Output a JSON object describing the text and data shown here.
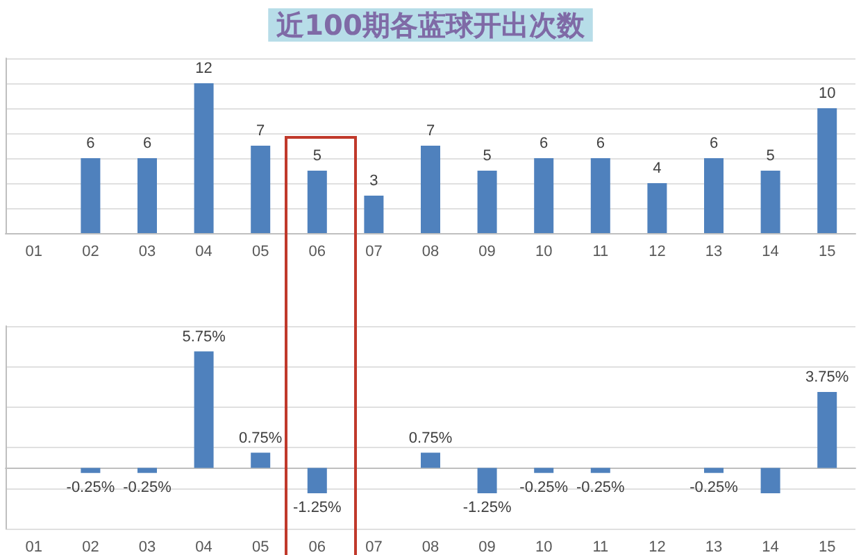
{
  "chart_data": [
    {
      "type": "bar",
      "title": "近100期各蓝球开出次数",
      "categories": [
        "01",
        "02",
        "03",
        "04",
        "05",
        "06",
        "07",
        "08",
        "09",
        "10",
        "11",
        "12",
        "13",
        "14",
        "15"
      ],
      "values": [
        null,
        6,
        6,
        12,
        7,
        5,
        3,
        7,
        5,
        6,
        6,
        4,
        6,
        5,
        10
      ],
      "color": "#4f81bd",
      "ylim": [
        0,
        14
      ],
      "yticks": [
        {
          "value": 0,
          "label": null
        },
        {
          "value": 2,
          "label": null
        },
        {
          "value": 4,
          "label": null
        },
        {
          "value": 6,
          "label": null
        },
        {
          "value": 8,
          "label": null
        },
        {
          "value": 10,
          "label": null
        },
        {
          "value": 12,
          "label": null
        },
        {
          "value": 14,
          "label": null
        }
      ],
      "grid": "y",
      "tick_labels": "x",
      "data_labels": true
    },
    {
      "type": "bar",
      "categories": [
        "01",
        "02",
        "03",
        "04",
        "05",
        "06",
        "07",
        "08",
        "09",
        "10",
        "11",
        "12",
        "13",
        "14",
        "15"
      ],
      "values": [
        null,
        -0.25,
        -0.25,
        5.75,
        0.75,
        -1.25,
        null,
        0.75,
        -1.25,
        -0.25,
        -0.25,
        null,
        -0.25,
        -1.25,
        3.75
      ],
      "value_labels": [
        null,
        "-0.25%",
        "-0.25%",
        "5.75%",
        "0.75%",
        "-1.25%",
        null,
        "0.75%",
        "-1.25%",
        "-0.25%",
        "-0.25%",
        null,
        "-0.25%",
        null,
        "3.75%"
      ],
      "color": "#4f81bd",
      "ylim": [
        -3,
        7
      ],
      "yticks": [
        {
          "value": -3,
          "label": null
        },
        {
          "value": -1,
          "label": null
        },
        {
          "value": 1,
          "label": null
        },
        {
          "value": 3,
          "label": null
        },
        {
          "value": 5,
          "label": null
        },
        {
          "value": 7,
          "label": null
        }
      ],
      "grid": "y",
      "tick_labels": "x"
    }
  ]
}
